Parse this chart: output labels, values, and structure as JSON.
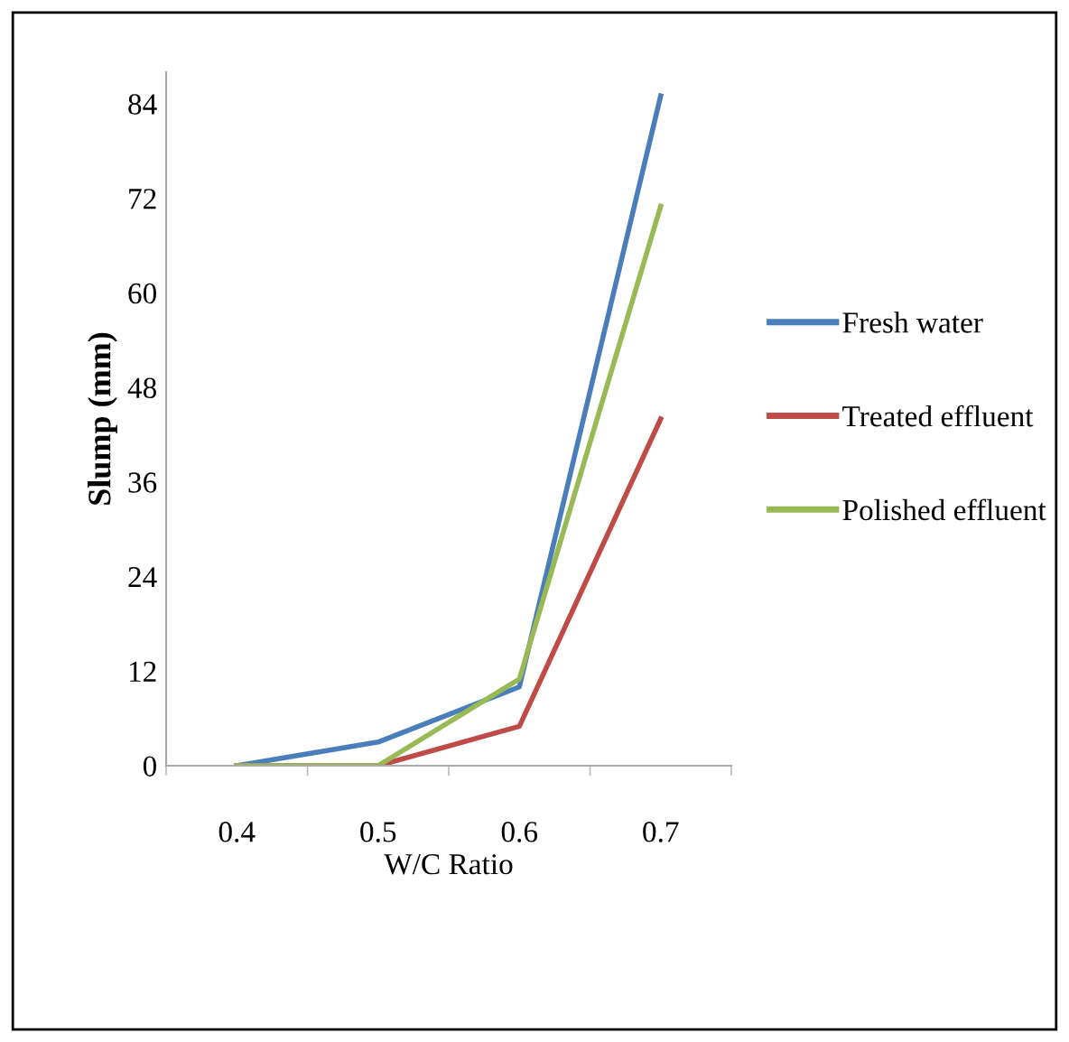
{
  "chart_data": {
    "type": "line",
    "xlabel": "W/C Ratio",
    "ylabel": "Slump (mm)",
    "categories": [
      "0.4",
      "0.5",
      "0.6",
      "0.7"
    ],
    "series": [
      {
        "name": "Fresh water",
        "color": "#4a7ebb",
        "values": [
          0,
          3,
          10,
          85
        ]
      },
      {
        "name": "Treated effluent",
        "color": "#be4b48",
        "values": [
          0,
          0,
          5,
          44
        ]
      },
      {
        "name": "Polished effluent",
        "color": "#98b954",
        "values": [
          0,
          0,
          11,
          71
        ]
      }
    ],
    "ylim": [
      0,
      88
    ],
    "yticks": [
      0,
      12,
      24,
      36,
      48,
      60,
      72,
      84
    ],
    "grid": false,
    "legend": "right",
    "marker": "none",
    "line_style": "solid"
  }
}
